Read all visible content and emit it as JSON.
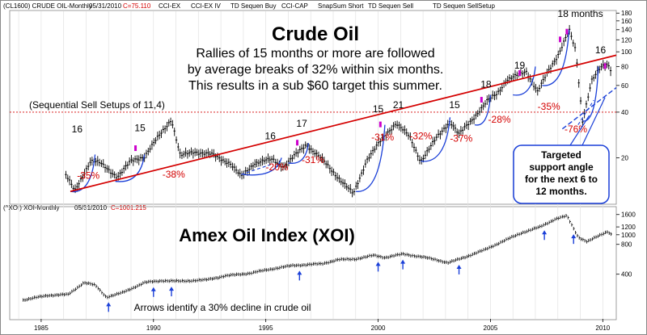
{
  "header": {
    "top_items": [
      "(CL1600) CRUDE OIL-Monthly",
      "05/31/2010",
      "C=75.110",
      "CCI-EX",
      "CCI-EX IV",
      "TD Sequen Buy",
      "CCI-CAP",
      "SnapSum Short",
      "TD Sequen Sell",
      "TD Sequen SellSetup"
    ],
    "bottom_items": [
      "(^XOI) XOI-Monthly",
      "05/31/2010",
      "C=1001.215"
    ]
  },
  "colors": {
    "accent": "#d40000",
    "support": "#1a3fd8",
    "setup": "#cc00cc",
    "grid": "#c8c8c8",
    "frame": "#888888"
  },
  "chart_data": [
    {
      "type": "candlestick",
      "title": "Crude Oil",
      "subtitle_lines": [
        "Rallies of 15 months or more are followed",
        "by average breaks of 32% within six months."
      ],
      "highlight_line": "This results in a sub $60 target this summer.",
      "y_scale": "log",
      "ylim": [
        10,
        185
      ],
      "y_ticks": [
        20,
        40,
        60,
        80,
        100,
        120,
        140,
        160,
        180
      ],
      "x_ticks": [
        "1985",
        "1990",
        "1995",
        "2000",
        "2005",
        "2010"
      ],
      "x_range": [
        1983.6,
        2010.6
      ],
      "series": [
        {
          "values": [
            [
              1986.1,
              15.5
            ],
            [
              1986.5,
              12.0
            ],
            [
              1987.2,
              19.2
            ],
            [
              1987.6,
              18.5
            ],
            [
              1988.4,
              15.0
            ],
            [
              1989.0,
              19.0
            ],
            [
              1989.6,
              20.5
            ],
            [
              1990.8,
              36.0
            ],
            [
              1991.2,
              20.5
            ],
            [
              1991.8,
              22.0
            ],
            [
              1992.6,
              21.0
            ],
            [
              1993.4,
              18.5
            ],
            [
              1993.9,
              15.0
            ],
            [
              1994.5,
              18.5
            ],
            [
              1995.3,
              19.5
            ],
            [
              1995.8,
              17.5
            ],
            [
              1996.8,
              24.5
            ],
            [
              1997.5,
              19.5
            ],
            [
              1998.2,
              15.0
            ],
            [
              1998.9,
              11.5
            ],
            [
              1999.5,
              19.5
            ],
            [
              2000.3,
              28.0
            ],
            [
              2000.8,
              34.0
            ],
            [
              2001.4,
              27.5
            ],
            [
              2001.9,
              19.0
            ],
            [
              2002.6,
              27.0
            ],
            [
              2003.2,
              35.0
            ],
            [
              2003.6,
              28.5
            ],
            [
              2004.2,
              36.0
            ],
            [
              2004.9,
              48.0
            ],
            [
              2005.3,
              53.0
            ],
            [
              2005.7,
              65.0
            ],
            [
              2006.6,
              74.0
            ],
            [
              2007.1,
              55.0
            ],
            [
              2007.6,
              75.0
            ],
            [
              2008.0,
              95.0
            ],
            [
              2008.5,
              140.0
            ],
            [
              2008.8,
              100.0
            ],
            [
              2009.1,
              35.0
            ],
            [
              2009.5,
              65.0
            ],
            [
              2009.9,
              78.0
            ],
            [
              2010.2,
              83.0
            ],
            [
              2010.4,
              75.0
            ]
          ]
        }
      ],
      "annotations": [
        {
          "label": "16",
          "x": 1986.6,
          "y": 29.5
        },
        {
          "label": "15",
          "x": 1989.4,
          "y": 30.0
        },
        {
          "label": "17",
          "x": 1996.6,
          "y": 32.0
        },
        {
          "label": "16",
          "x": 1995.2,
          "y": 26.5
        },
        {
          "label": "15",
          "x": 2000.0,
          "y": 40.0
        },
        {
          "label": "21",
          "x": 2000.9,
          "y": 42.5
        },
        {
          "label": "15",
          "x": 2003.4,
          "y": 42.5
        },
        {
          "label": "18",
          "x": 2004.8,
          "y": 58.0
        },
        {
          "label": "19",
          "x": 2006.3,
          "y": 77.5
        },
        {
          "label": "18 months",
          "x": 2009.0,
          "y": 170.0
        },
        {
          "label": "16",
          "x": 2009.9,
          "y": 98.0
        }
      ],
      "declines": [
        {
          "label": "-35%",
          "x": 1987.1,
          "y": 14.5
        },
        {
          "label": "-38%",
          "x": 1990.9,
          "y": 14.8
        },
        {
          "label": "-20%",
          "x": 1995.5,
          "y": 16.5
        },
        {
          "label": "-31%",
          "x": 1997.1,
          "y": 18.5
        },
        {
          "label": "-31%",
          "x": 2000.2,
          "y": 26.0
        },
        {
          "label": "-32%",
          "x": 2001.9,
          "y": 26.5
        },
        {
          "label": "-37%",
          "x": 2003.7,
          "y": 25.5
        },
        {
          "label": "-28%",
          "x": 2005.4,
          "y": 34.0
        },
        {
          "label": "-35%",
          "x": 2007.6,
          "y": 41.5
        },
        {
          "label": "-76%",
          "x": 2008.8,
          "y": 29.5
        }
      ],
      "setups_label": "(Sequential Sell Setups of 11,4)",
      "setups_level": 40,
      "callout_lines": [
        "Targeted",
        "support angle",
        "for the next 6 to",
        "12 months."
      ],
      "trendline_red": [
        [
          1986.3,
          12.0
        ],
        [
          2010.6,
          95.0
        ]
      ],
      "trendline_support": [
        [
          2008.2,
          31.0
        ],
        [
          2010.6,
          58.0
        ]
      ]
    },
    {
      "type": "ohlc",
      "title": "Amex Oil Index (XOI)",
      "y_scale": "log",
      "ylim": [
        150,
        1850
      ],
      "y_ticks": [
        400,
        800,
        1000,
        1200,
        1600
      ],
      "x_range": [
        1983.6,
        2010.6
      ],
      "series": [
        {
          "values": [
            [
              1984.2,
              220
            ],
            [
              1985.3,
              245
            ],
            [
              1986.2,
              250
            ],
            [
              1986.9,
              330
            ],
            [
              1987.4,
              310
            ],
            [
              1987.9,
              235
            ],
            [
              1988.6,
              260
            ],
            [
              1989.6,
              330
            ],
            [
              1990.4,
              345
            ],
            [
              1991.1,
              340
            ],
            [
              1992.3,
              350
            ],
            [
              1993.2,
              385
            ],
            [
              1994.3,
              410
            ],
            [
              1995.2,
              450
            ],
            [
              1996.2,
              490
            ],
            [
              1997.5,
              510
            ],
            [
              1998.2,
              560
            ],
            [
              1999.0,
              570
            ],
            [
              1999.8,
              620
            ],
            [
              2000.3,
              590
            ],
            [
              2001.1,
              640
            ],
            [
              2001.9,
              600
            ],
            [
              2002.6,
              560
            ],
            [
              2003.1,
              520
            ],
            [
              2003.9,
              600
            ],
            [
              2004.7,
              700
            ],
            [
              2005.5,
              850
            ],
            [
              2006.4,
              1050
            ],
            [
              2007.2,
              1200
            ],
            [
              2007.9,
              1450
            ],
            [
              2008.4,
              1550
            ],
            [
              2008.9,
              950
            ],
            [
              2009.3,
              850
            ],
            [
              2009.9,
              1000
            ],
            [
              2010.2,
              1080
            ],
            [
              2010.4,
              1001
            ]
          ]
        }
      ],
      "arrows_x": [
        1988.0,
        1990.0,
        1990.8,
        1996.5,
        2000.0,
        2001.1,
        2003.6,
        2007.4,
        2008.7
      ],
      "footnote": "Arrows identify a 30% decline in crude oil"
    }
  ]
}
